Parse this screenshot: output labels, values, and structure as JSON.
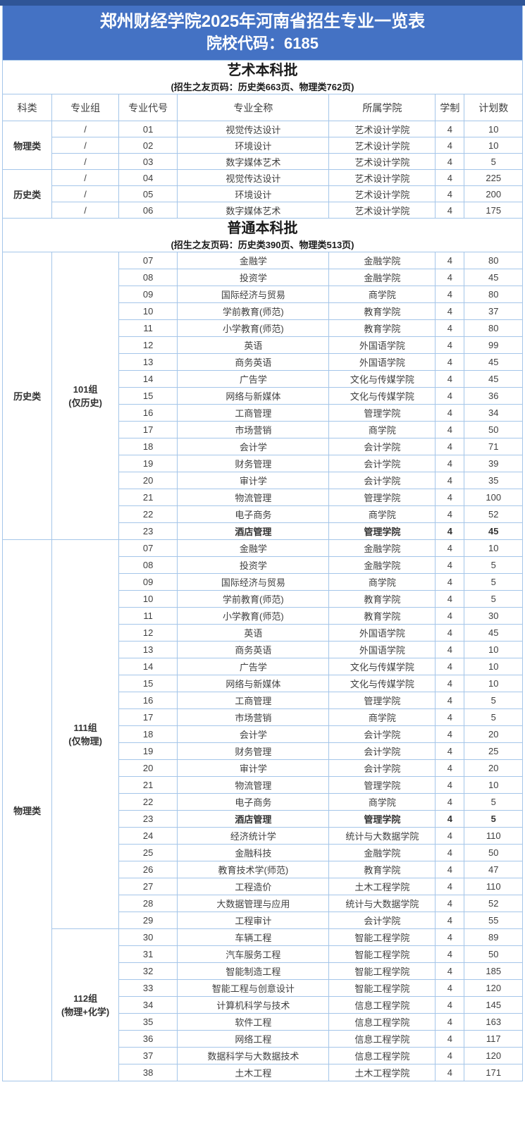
{
  "banner": {
    "title": "郑州财经学院2025年河南省招生专业一览表",
    "subtitle": "院校代码：6185"
  },
  "columns": [
    "科类",
    "专业组",
    "专业代号",
    "专业全称",
    "所属学院",
    "学制",
    "计划数"
  ],
  "colors": {
    "banner_top_strip": "#2f5597",
    "banner_bg": "#4472c4",
    "banner_text": "#ffffff",
    "table_border": "#a5c6e9",
    "cell_text": "#3f3f3f"
  },
  "sections": [
    {
      "id": "art",
      "title": "艺术本科批",
      "subtitle": "(招生之友页码：历史类663页、物理类762页)",
      "show_column_header": true,
      "categories": [
        {
          "name": "物理类",
          "groups": [
            {
              "per_row_group": "/",
              "rows": [
                {
                  "code": "01",
                  "major": "视觉传达设计",
                  "college": "艺术设计学院",
                  "years": "4",
                  "plan": "10"
                },
                {
                  "code": "02",
                  "major": "环境设计",
                  "college": "艺术设计学院",
                  "years": "4",
                  "plan": "10"
                },
                {
                  "code": "03",
                  "major": "数字媒体艺术",
                  "college": "艺术设计学院",
                  "years": "4",
                  "plan": "5"
                }
              ]
            }
          ]
        },
        {
          "name": "历史类",
          "groups": [
            {
              "per_row_group": "/",
              "rows": [
                {
                  "code": "04",
                  "major": "视觉传达设计",
                  "college": "艺术设计学院",
                  "years": "4",
                  "plan": "225"
                },
                {
                  "code": "05",
                  "major": "环境设计",
                  "college": "艺术设计学院",
                  "years": "4",
                  "plan": "200"
                },
                {
                  "code": "06",
                  "major": "数字媒体艺术",
                  "college": "艺术设计学院",
                  "years": "4",
                  "plan": "175"
                }
              ]
            }
          ]
        }
      ]
    },
    {
      "id": "regular",
      "title": "普通本科批",
      "subtitle": "(招生之友页码：历史类390页、物理类513页)",
      "show_column_header": false,
      "categories": [
        {
          "name": "历史类",
          "groups": [
            {
              "label": [
                "101组",
                "(仅历史)"
              ],
              "rows": [
                {
                  "code": "07",
                  "major": "金融学",
                  "college": "金融学院",
                  "years": "4",
                  "plan": "80"
                },
                {
                  "code": "08",
                  "major": "投资学",
                  "college": "金融学院",
                  "years": "4",
                  "plan": "45"
                },
                {
                  "code": "09",
                  "major": "国际经济与贸易",
                  "college": "商学院",
                  "years": "4",
                  "plan": "80"
                },
                {
                  "code": "10",
                  "major": "学前教育(师范)",
                  "college": "教育学院",
                  "years": "4",
                  "plan": "37"
                },
                {
                  "code": "11",
                  "major": "小学教育(师范)",
                  "college": "教育学院",
                  "years": "4",
                  "plan": "80"
                },
                {
                  "code": "12",
                  "major": "英语",
                  "college": "外国语学院",
                  "years": "4",
                  "plan": "99"
                },
                {
                  "code": "13",
                  "major": "商务英语",
                  "college": "外国语学院",
                  "years": "4",
                  "plan": "45"
                },
                {
                  "code": "14",
                  "major": "广告学",
                  "college": "文化与传媒学院",
                  "years": "4",
                  "plan": "45"
                },
                {
                  "code": "15",
                  "major": "网络与新媒体",
                  "college": "文化与传媒学院",
                  "years": "4",
                  "plan": "36"
                },
                {
                  "code": "16",
                  "major": "工商管理",
                  "college": "管理学院",
                  "years": "4",
                  "plan": "34"
                },
                {
                  "code": "17",
                  "major": "市场营销",
                  "college": "商学院",
                  "years": "4",
                  "plan": "50"
                },
                {
                  "code": "18",
                  "major": "会计学",
                  "college": "会计学院",
                  "years": "4",
                  "plan": "71"
                },
                {
                  "code": "19",
                  "major": "财务管理",
                  "college": "会计学院",
                  "years": "4",
                  "plan": "39"
                },
                {
                  "code": "20",
                  "major": "审计学",
                  "college": "会计学院",
                  "years": "4",
                  "plan": "35"
                },
                {
                  "code": "21",
                  "major": "物流管理",
                  "college": "管理学院",
                  "years": "4",
                  "plan": "100"
                },
                {
                  "code": "22",
                  "major": "电子商务",
                  "college": "商学院",
                  "years": "4",
                  "plan": "52"
                },
                {
                  "code": "23",
                  "major": "酒店管理",
                  "college": "管理学院",
                  "years": "4",
                  "plan": "45",
                  "bold": true
                }
              ]
            }
          ]
        },
        {
          "name": "物理类",
          "groups": [
            {
              "label": [
                "111组",
                "(仅物理)"
              ],
              "rows": [
                {
                  "code": "07",
                  "major": "金融学",
                  "college": "金融学院",
                  "years": "4",
                  "plan": "10"
                },
                {
                  "code": "08",
                  "major": "投资学",
                  "college": "金融学院",
                  "years": "4",
                  "plan": "5"
                },
                {
                  "code": "09",
                  "major": "国际经济与贸易",
                  "college": "商学院",
                  "years": "4",
                  "plan": "5"
                },
                {
                  "code": "10",
                  "major": "学前教育(师范)",
                  "college": "教育学院",
                  "years": "4",
                  "plan": "5"
                },
                {
                  "code": "11",
                  "major": "小学教育(师范)",
                  "college": "教育学院",
                  "years": "4",
                  "plan": "30"
                },
                {
                  "code": "12",
                  "major": "英语",
                  "college": "外国语学院",
                  "years": "4",
                  "plan": "45"
                },
                {
                  "code": "13",
                  "major": "商务英语",
                  "college": "外国语学院",
                  "years": "4",
                  "plan": "10"
                },
                {
                  "code": "14",
                  "major": "广告学",
                  "college": "文化与传媒学院",
                  "years": "4",
                  "plan": "10"
                },
                {
                  "code": "15",
                  "major": "网络与新媒体",
                  "college": "文化与传媒学院",
                  "years": "4",
                  "plan": "10"
                },
                {
                  "code": "16",
                  "major": "工商管理",
                  "college": "管理学院",
                  "years": "4",
                  "plan": "5"
                },
                {
                  "code": "17",
                  "major": "市场营销",
                  "college": "商学院",
                  "years": "4",
                  "plan": "5"
                },
                {
                  "code": "18",
                  "major": "会计学",
                  "college": "会计学院",
                  "years": "4",
                  "plan": "20"
                },
                {
                  "code": "19",
                  "major": "财务管理",
                  "college": "会计学院",
                  "years": "4",
                  "plan": "25"
                },
                {
                  "code": "20",
                  "major": "审计学",
                  "college": "会计学院",
                  "years": "4",
                  "plan": "20"
                },
                {
                  "code": "21",
                  "major": "物流管理",
                  "college": "管理学院",
                  "years": "4",
                  "plan": "10"
                },
                {
                  "code": "22",
                  "major": "电子商务",
                  "college": "商学院",
                  "years": "4",
                  "plan": "5"
                },
                {
                  "code": "23",
                  "major": "酒店管理",
                  "college": "管理学院",
                  "years": "4",
                  "plan": "5",
                  "bold": true
                },
                {
                  "code": "24",
                  "major": "经济统计学",
                  "college": "统计与大数据学院",
                  "years": "4",
                  "plan": "110"
                },
                {
                  "code": "25",
                  "major": "金融科技",
                  "college": "金融学院",
                  "years": "4",
                  "plan": "50"
                },
                {
                  "code": "26",
                  "major": "教育技术学(师范)",
                  "college": "教育学院",
                  "years": "4",
                  "plan": "47"
                },
                {
                  "code": "27",
                  "major": "工程造价",
                  "college": "土木工程学院",
                  "years": "4",
                  "plan": "110"
                },
                {
                  "code": "28",
                  "major": "大数据管理与应用",
                  "college": "统计与大数据学院",
                  "years": "4",
                  "plan": "52"
                },
                {
                  "code": "29",
                  "major": "工程审计",
                  "college": "会计学院",
                  "years": "4",
                  "plan": "55"
                }
              ]
            },
            {
              "label": [
                "112组",
                "(物理+化学)"
              ],
              "rows": [
                {
                  "code": "30",
                  "major": "车辆工程",
                  "college": "智能工程学院",
                  "years": "4",
                  "plan": "89"
                },
                {
                  "code": "31",
                  "major": "汽车服务工程",
                  "college": "智能工程学院",
                  "years": "4",
                  "plan": "50"
                },
                {
                  "code": "32",
                  "major": "智能制造工程",
                  "college": "智能工程学院",
                  "years": "4",
                  "plan": "185"
                },
                {
                  "code": "33",
                  "major": "智能工程与创意设计",
                  "college": "智能工程学院",
                  "years": "4",
                  "plan": "120"
                },
                {
                  "code": "34",
                  "major": "计算机科学与技术",
                  "college": "信息工程学院",
                  "years": "4",
                  "plan": "145"
                },
                {
                  "code": "35",
                  "major": "软件工程",
                  "college": "信息工程学院",
                  "years": "4",
                  "plan": "163"
                },
                {
                  "code": "36",
                  "major": "网络工程",
                  "college": "信息工程学院",
                  "years": "4",
                  "plan": "117"
                },
                {
                  "code": "37",
                  "major": "数据科学与大数据技术",
                  "college": "信息工程学院",
                  "years": "4",
                  "plan": "120"
                },
                {
                  "code": "38",
                  "major": "土木工程",
                  "college": "土木工程学院",
                  "years": "4",
                  "plan": "171"
                }
              ]
            }
          ]
        }
      ]
    }
  ]
}
